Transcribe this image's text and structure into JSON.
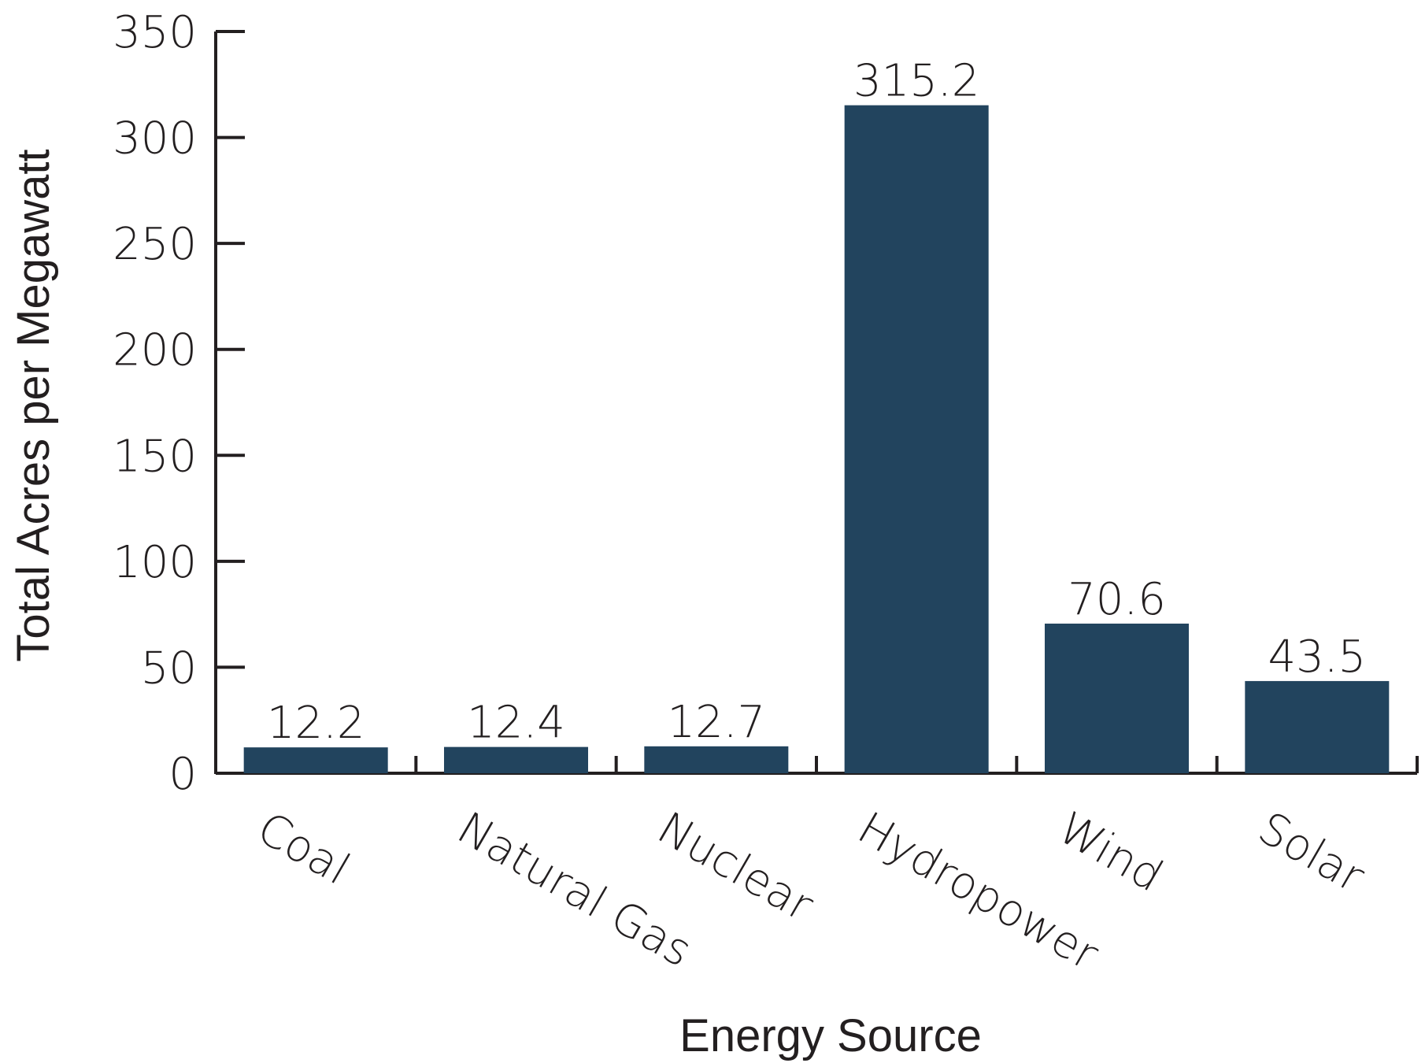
{
  "chart_data": {
    "type": "bar",
    "title": "",
    "xlabel": "Energy Source",
    "ylabel": "Total Acres per Megawatt",
    "categories": [
      "Coal",
      "Natural Gas",
      "Nuclear",
      "Hydropower",
      "Wind",
      "Solar"
    ],
    "values": [
      12.2,
      12.4,
      12.7,
      315.2,
      70.6,
      43.5
    ],
    "value_labels": [
      "12.2",
      "12.4",
      "12.7",
      "315.2",
      "70.6",
      "43.5"
    ],
    "ylim": [
      0,
      350
    ],
    "yticks": [
      0,
      50,
      100,
      150,
      200,
      250,
      300,
      350
    ],
    "ytick_labels": [
      "0",
      "50",
      "100",
      "150",
      "200",
      "250",
      "300",
      "350"
    ],
    "grid": false,
    "bar_color": "#22445e",
    "text_color": "#231f20"
  }
}
